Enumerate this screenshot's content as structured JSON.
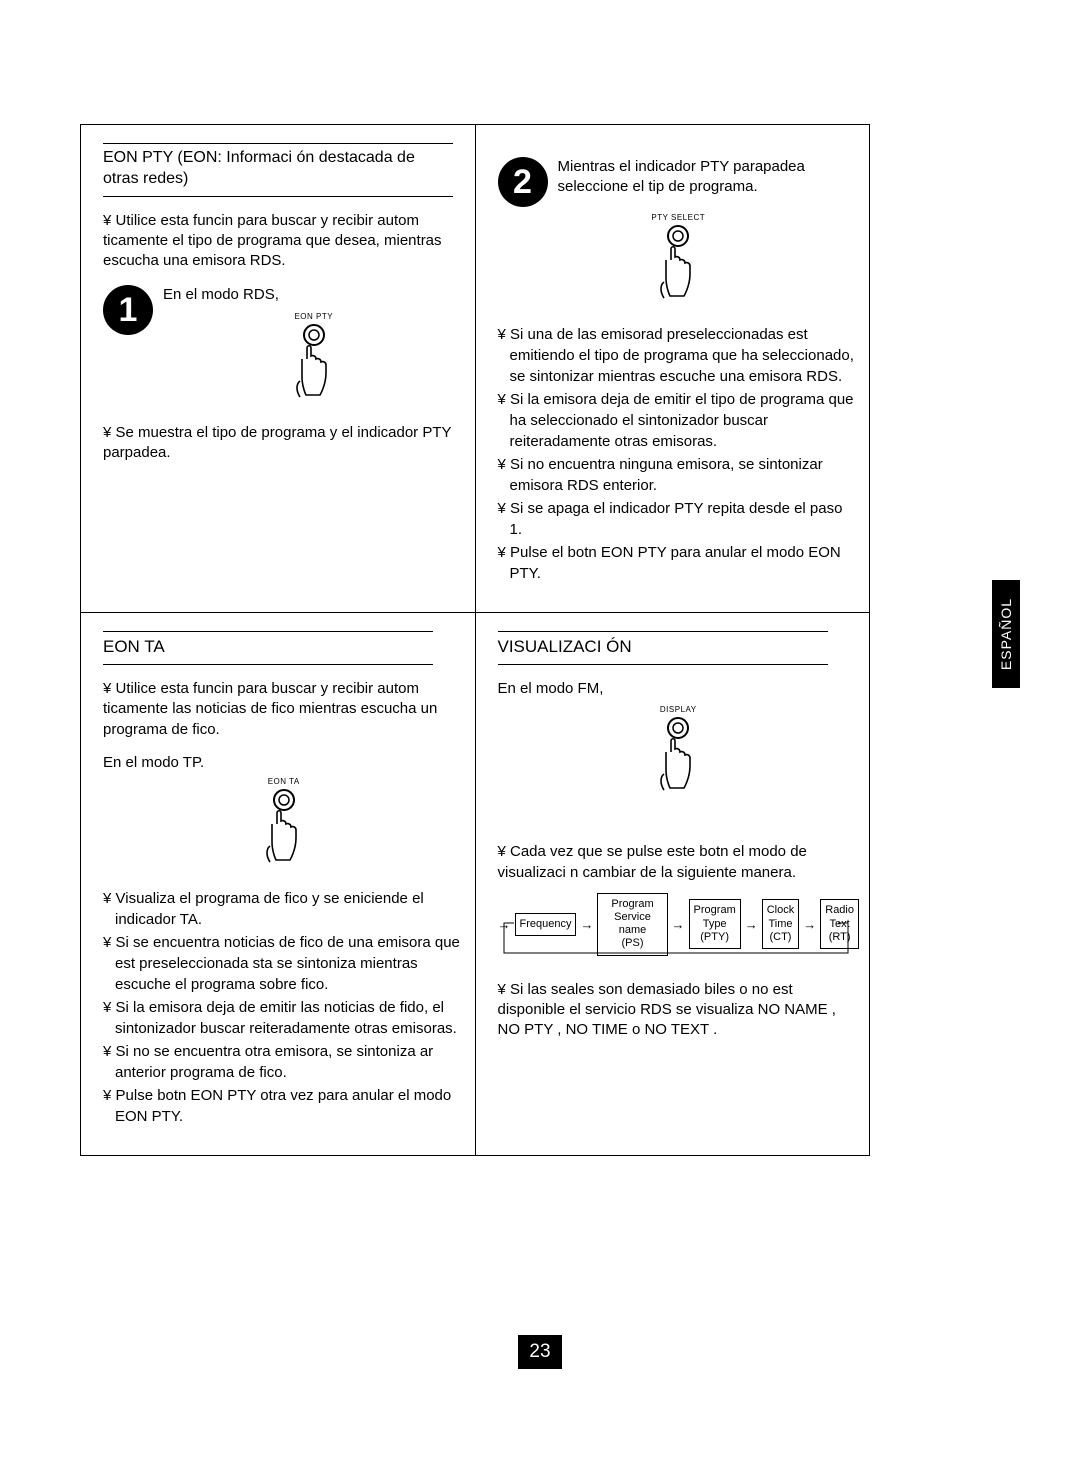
{
  "page": {
    "number": "23",
    "sideTab": "ESPAÑOL"
  },
  "colors": {
    "bg": "#ffffff",
    "fg": "#000000"
  },
  "eonPty": {
    "title": "EON PTY (EON: Informaci ón destacada de otras redes)",
    "intro": "¥ Utilice esta funcin para buscar y recibir autom ticamente el tipo de programa que desea, mientras escucha una emisora RDS.",
    "step1Label": "1",
    "step1Text": "En el modo RDS,",
    "step1ButtonLabel": "EON PTY",
    "afterStep1": "¥ Se muestra el tipo de programa y el indicador PTY parpadea.",
    "step2Label": "2",
    "step2Text": "Mientras el indicador PTY parapadea seleccione el tip de programa.",
    "step2ButtonLabel": "PTY SELECT",
    "bullets2": [
      "¥ Si una de las emisorad preseleccionadas est emitiendo el tipo de programa que ha seleccionado, se sintonizar mientras escuche una emisora RDS.",
      "¥ Si la emisora deja de emitir el tipo de programa que ha seleccionado el sintonizador buscar reiteradamente otras emisoras.",
      "¥ Si no encuentra ninguna emisora, se sintonizar emisora RDS enterior.",
      "¥ Si se apaga el indicador PTY repita desde el paso 1.",
      "¥ Pulse el botn EON PTY para anular el modo EON PTY."
    ]
  },
  "eonTa": {
    "title": "EON TA",
    "intro": "¥ Utilice esta funcin para buscar y recibir autom ticamente las noticias de fico mientras escucha un programa de fico.",
    "modeLine": "En el modo TP.",
    "buttonLabel": "EON TA",
    "bullets": [
      "¥ Visualiza el programa de fico y se eniciende el indicador TA.",
      "¥ Si se encuentra noticias de fico de una emisora que est preseleccionada sta se sintoniza mientras escuche el programa sobre fico.",
      "¥ Si la emisora deja de emitir las noticias de fido, el sintonizador buscar reiteradamente otras emisoras.",
      "¥ Si no se encuentra otra emisora, se sintoniza ar anterior programa de fico.",
      "¥ Pulse botn EON PTY otra vez para anular el modo EON PTY."
    ]
  },
  "visual": {
    "title": "VISUALIZACI ÓN",
    "modeLine": "En el modo FM,",
    "buttonLabel": "DISPLAY",
    "intro": "¥ Cada vez que se pulse este botn el modo de visualizaci n cambiar de la siguiente manera.",
    "flow": [
      "Frequency",
      "Program\nService name\n(PS)",
      "Program\nType\n(PTY)",
      "Clock\nTime\n(CT)",
      "Radio\nText\n(RT)"
    ],
    "footer": "¥ Si las seales son demasiado biles o no est disponible el servicio RDS se visualiza NO NAME , NO PTY , NO TIME o NO TEXT ."
  }
}
